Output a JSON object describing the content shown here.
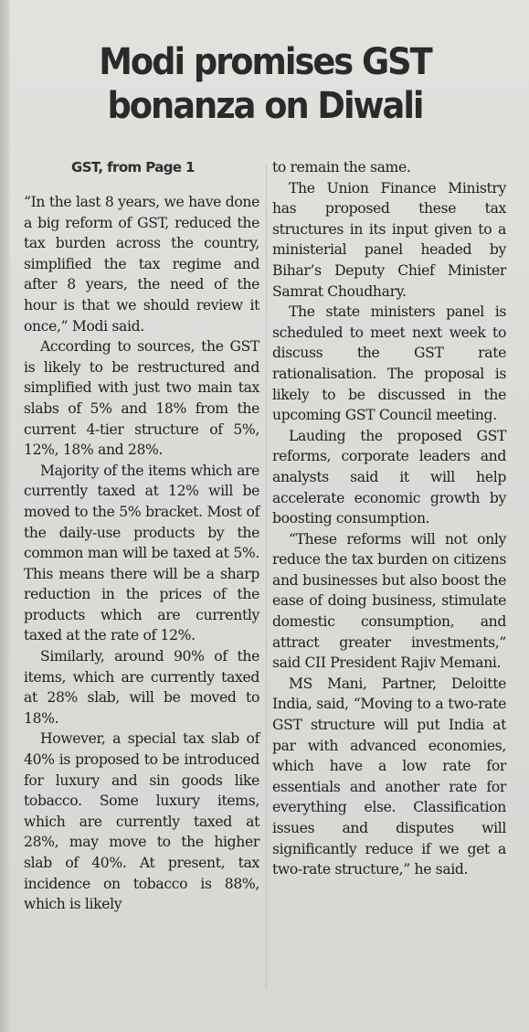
{
  "article": {
    "headline_line1": "Modi promises GST",
    "headline_line2": "bonanza on Diwali",
    "jump_line": "GST, from Page 1",
    "left_column": [
      "“In the last 8 years, we have done a big reform of GST, reduced the tax burden across the country, simplified the tax regime and after 8 years, the need of the hour is that we should review it once,” Modi said.",
      "According to sources, the GST is likely to be restructured and simplified with just two main tax slabs of 5% and 18% from the current 4-tier structure of 5%, 12%, 18% and 28%.",
      "Majority of the items which are currently taxed at 12% will be moved to the 5% bracket. Most of the daily-use products by the common man will be taxed at 5%. This means there will be a sharp reduction in the prices of the products which are currently taxed at the rate of 12%.",
      "Similarly, around 90% of the items, which are currently taxed at 28% slab, will be moved to 18%.",
      "However, a special tax slab of 40% is proposed to be introduced for luxury and sin goods like tobacco. Some luxury items, which are currently taxed at 28%, may move to the higher slab of 40%. At present, tax incidence on tobacco is 88%, which is likely"
    ],
    "right_column": [
      "to remain the same.",
      "The Union Finance Ministry has proposed these tax structures in its input given to a ministerial panel headed by Bihar’s Deputy Chief Minister Samrat Choudhary.",
      "The state ministers panel is scheduled to meet next week to discuss the GST rate rationalisation. The proposal is likely to be discussed in the upcoming GST Council meeting.",
      "Lauding the proposed GST reforms, corporate leaders and analysts said it will help accelerate economic growth by boosting consumption.",
      "“These reforms will not only reduce the tax burden on citizens and businesses but also boost the ease of doing business, stimulate domestic consumption, and attract greater investments,” said CII President Rajiv Memani.",
      "MS Mani, Partner, Deloitte India, said, “Moving to a two-rate GST structure will put India at par with advanced economies, which have a low rate for essentials and another rate for everything else. Classification issues and disputes will significantly reduce if we get a two-rate structure,” he said."
    ]
  }
}
